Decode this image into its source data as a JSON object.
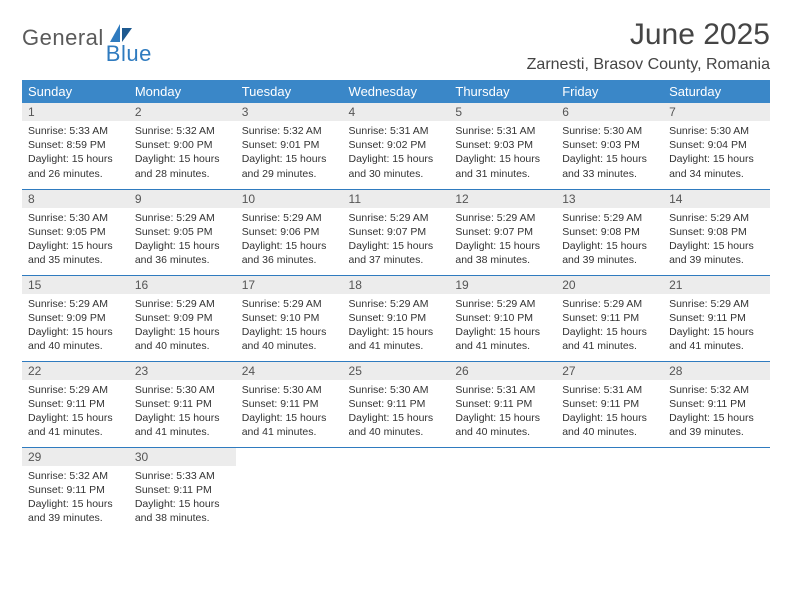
{
  "logo": {
    "general": "General",
    "blue": "Blue"
  },
  "header": {
    "month_title": "June 2025",
    "location": "Zarnesti, Brasov County, Romania"
  },
  "colors": {
    "header_bg": "#3a87c8",
    "header_text": "#ffffff",
    "daynum_bg": "#ececec",
    "row_border": "#2f7bbf",
    "text": "#333333",
    "title_text": "#454545",
    "logo_gray": "#5a5a5a",
    "logo_blue": "#2f7bbf"
  },
  "weekdays": [
    "Sunday",
    "Monday",
    "Tuesday",
    "Wednesday",
    "Thursday",
    "Friday",
    "Saturday"
  ],
  "days": [
    {
      "n": "1",
      "sr": "Sunrise: 5:33 AM",
      "ss": "Sunset: 8:59 PM",
      "dl": "Daylight: 15 hours and 26 minutes."
    },
    {
      "n": "2",
      "sr": "Sunrise: 5:32 AM",
      "ss": "Sunset: 9:00 PM",
      "dl": "Daylight: 15 hours and 28 minutes."
    },
    {
      "n": "3",
      "sr": "Sunrise: 5:32 AM",
      "ss": "Sunset: 9:01 PM",
      "dl": "Daylight: 15 hours and 29 minutes."
    },
    {
      "n": "4",
      "sr": "Sunrise: 5:31 AM",
      "ss": "Sunset: 9:02 PM",
      "dl": "Daylight: 15 hours and 30 minutes."
    },
    {
      "n": "5",
      "sr": "Sunrise: 5:31 AM",
      "ss": "Sunset: 9:03 PM",
      "dl": "Daylight: 15 hours and 31 minutes."
    },
    {
      "n": "6",
      "sr": "Sunrise: 5:30 AM",
      "ss": "Sunset: 9:03 PM",
      "dl": "Daylight: 15 hours and 33 minutes."
    },
    {
      "n": "7",
      "sr": "Sunrise: 5:30 AM",
      "ss": "Sunset: 9:04 PM",
      "dl": "Daylight: 15 hours and 34 minutes."
    },
    {
      "n": "8",
      "sr": "Sunrise: 5:30 AM",
      "ss": "Sunset: 9:05 PM",
      "dl": "Daylight: 15 hours and 35 minutes."
    },
    {
      "n": "9",
      "sr": "Sunrise: 5:29 AM",
      "ss": "Sunset: 9:05 PM",
      "dl": "Daylight: 15 hours and 36 minutes."
    },
    {
      "n": "10",
      "sr": "Sunrise: 5:29 AM",
      "ss": "Sunset: 9:06 PM",
      "dl": "Daylight: 15 hours and 36 minutes."
    },
    {
      "n": "11",
      "sr": "Sunrise: 5:29 AM",
      "ss": "Sunset: 9:07 PM",
      "dl": "Daylight: 15 hours and 37 minutes."
    },
    {
      "n": "12",
      "sr": "Sunrise: 5:29 AM",
      "ss": "Sunset: 9:07 PM",
      "dl": "Daylight: 15 hours and 38 minutes."
    },
    {
      "n": "13",
      "sr": "Sunrise: 5:29 AM",
      "ss": "Sunset: 9:08 PM",
      "dl": "Daylight: 15 hours and 39 minutes."
    },
    {
      "n": "14",
      "sr": "Sunrise: 5:29 AM",
      "ss": "Sunset: 9:08 PM",
      "dl": "Daylight: 15 hours and 39 minutes."
    },
    {
      "n": "15",
      "sr": "Sunrise: 5:29 AM",
      "ss": "Sunset: 9:09 PM",
      "dl": "Daylight: 15 hours and 40 minutes."
    },
    {
      "n": "16",
      "sr": "Sunrise: 5:29 AM",
      "ss": "Sunset: 9:09 PM",
      "dl": "Daylight: 15 hours and 40 minutes."
    },
    {
      "n": "17",
      "sr": "Sunrise: 5:29 AM",
      "ss": "Sunset: 9:10 PM",
      "dl": "Daylight: 15 hours and 40 minutes."
    },
    {
      "n": "18",
      "sr": "Sunrise: 5:29 AM",
      "ss": "Sunset: 9:10 PM",
      "dl": "Daylight: 15 hours and 41 minutes."
    },
    {
      "n": "19",
      "sr": "Sunrise: 5:29 AM",
      "ss": "Sunset: 9:10 PM",
      "dl": "Daylight: 15 hours and 41 minutes."
    },
    {
      "n": "20",
      "sr": "Sunrise: 5:29 AM",
      "ss": "Sunset: 9:11 PM",
      "dl": "Daylight: 15 hours and 41 minutes."
    },
    {
      "n": "21",
      "sr": "Sunrise: 5:29 AM",
      "ss": "Sunset: 9:11 PM",
      "dl": "Daylight: 15 hours and 41 minutes."
    },
    {
      "n": "22",
      "sr": "Sunrise: 5:29 AM",
      "ss": "Sunset: 9:11 PM",
      "dl": "Daylight: 15 hours and 41 minutes."
    },
    {
      "n": "23",
      "sr": "Sunrise: 5:30 AM",
      "ss": "Sunset: 9:11 PM",
      "dl": "Daylight: 15 hours and 41 minutes."
    },
    {
      "n": "24",
      "sr": "Sunrise: 5:30 AM",
      "ss": "Sunset: 9:11 PM",
      "dl": "Daylight: 15 hours and 41 minutes."
    },
    {
      "n": "25",
      "sr": "Sunrise: 5:30 AM",
      "ss": "Sunset: 9:11 PM",
      "dl": "Daylight: 15 hours and 40 minutes."
    },
    {
      "n": "26",
      "sr": "Sunrise: 5:31 AM",
      "ss": "Sunset: 9:11 PM",
      "dl": "Daylight: 15 hours and 40 minutes."
    },
    {
      "n": "27",
      "sr": "Sunrise: 5:31 AM",
      "ss": "Sunset: 9:11 PM",
      "dl": "Daylight: 15 hours and 40 minutes."
    },
    {
      "n": "28",
      "sr": "Sunrise: 5:32 AM",
      "ss": "Sunset: 9:11 PM",
      "dl": "Daylight: 15 hours and 39 minutes."
    },
    {
      "n": "29",
      "sr": "Sunrise: 5:32 AM",
      "ss": "Sunset: 9:11 PM",
      "dl": "Daylight: 15 hours and 39 minutes."
    },
    {
      "n": "30",
      "sr": "Sunrise: 5:33 AM",
      "ss": "Sunset: 9:11 PM",
      "dl": "Daylight: 15 hours and 38 minutes."
    }
  ]
}
